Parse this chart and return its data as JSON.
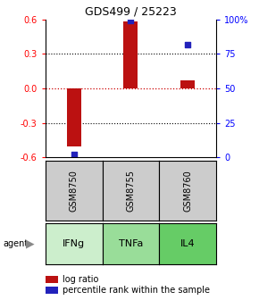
{
  "title": "GDS499 / 25223",
  "samples": [
    "GSM8750",
    "GSM8755",
    "GSM8760"
  ],
  "agents": [
    "IFNg",
    "TNFa",
    "IL4"
  ],
  "log_ratios": [
    -0.5,
    0.585,
    0.07
  ],
  "percentiles": [
    2.0,
    99.5,
    82.0
  ],
  "ylim_left": [
    -0.6,
    0.6
  ],
  "ylim_right": [
    0,
    100
  ],
  "bar_color": "#bb1111",
  "dot_color": "#2222bb",
  "sample_bg": "#cccccc",
  "agent_bg": "#88dd88",
  "right_ticks": [
    0,
    25,
    50,
    75,
    100
  ],
  "right_tick_labels": [
    "0",
    "25",
    "50",
    "75",
    "100%"
  ],
  "left_ticks": [
    -0.6,
    -0.3,
    0.0,
    0.3,
    0.6
  ],
  "legend_red": "log ratio",
  "legend_blue": "percentile rank within the sample"
}
